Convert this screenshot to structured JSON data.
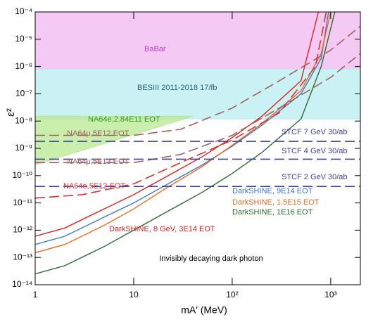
{
  "chart_data": {
    "type": "line",
    "x_label": "mA′ (MeV)",
    "y_label": "ε²",
    "xlog": true,
    "ylog": true,
    "xlim": [
      1,
      2000
    ],
    "ylim": [
      1e-14,
      0.0001
    ],
    "xticks": [
      1,
      10,
      {
        "value": 100,
        "label": "10²"
      },
      {
        "value": 1000,
        "label": "10³"
      }
    ],
    "yticks": [
      {
        "value": 1e-14,
        "label": "10⁻¹⁴"
      },
      {
        "value": 1e-13,
        "label": "10⁻¹³"
      },
      {
        "value": 1e-12,
        "label": "10⁻¹²"
      },
      {
        "value": 1e-11,
        "label": "10⁻¹¹"
      },
      {
        "value": 1e-10,
        "label": "10⁻¹⁰"
      },
      {
        "value": 1e-09,
        "label": "10⁻⁹"
      },
      {
        "value": 1e-08,
        "label": "10⁻⁸"
      },
      {
        "value": 1e-07,
        "label": "10⁻⁷"
      },
      {
        "value": 1e-06,
        "label": "10⁻⁶"
      },
      {
        "value": 1e-05,
        "label": "10⁻⁵"
      },
      {
        "value": 0.0001,
        "label": "10⁻⁴"
      }
    ],
    "regions": [
      {
        "name": "BaBar",
        "color": "#f0b8f0",
        "label_color": "#c040c0",
        "x": [
          1,
          2000,
          2000,
          1
        ],
        "values": [
          0.0001,
          0.0001,
          8e-07,
          8e-07
        ]
      },
      {
        "name": "BESIII 2011-2018 17/fb",
        "color": "#b8eef0",
        "label_color": "#2a6070",
        "x": [
          1,
          2000,
          2000,
          1
        ],
        "values": [
          8e-07,
          8e-07,
          1.2e-08,
          1.2e-08
        ]
      },
      {
        "name": "NA64e,2.84E11 EOT",
        "color": "#b8e890",
        "label_color": "#3a9a20",
        "x": [
          1,
          40,
          1
        ],
        "values": [
          1.5e-08,
          1.5e-08,
          2.5e-10
        ]
      }
    ],
    "series": [
      {
        "name": "DarkSHINE, 9E14 EOT",
        "color": "#3a78c8",
        "dash": false,
        "x": [
          1,
          2,
          5,
          10,
          20,
          50,
          100,
          200,
          500,
          800,
          950
        ],
        "values": [
          3e-13,
          6e-13,
          3e-12,
          1e-11,
          4e-11,
          2.5e-10,
          1.2e-09,
          7e-09,
          1e-07,
          2e-06,
          0.0001
        ]
      },
      {
        "name": "DarkSHINE, 1.5E15 EOT",
        "color": "#f06a20",
        "dash": false,
        "x": [
          1,
          2,
          5,
          10,
          20,
          50,
          100,
          200,
          500,
          800,
          1000
        ],
        "values": [
          1.5e-13,
          3e-13,
          1.5e-12,
          6e-12,
          3e-11,
          2.2e-10,
          1.3e-09,
          8e-09,
          1.3e-07,
          3e-06,
          0.0001
        ]
      },
      {
        "name": "DarkSHINE, 1E16 EOT",
        "color": "#2a6a30",
        "dash": false,
        "x": [
          1,
          2,
          5,
          10,
          20,
          50,
          100,
          200,
          500,
          800,
          1100
        ],
        "values": [
          2.5e-14,
          5e-14,
          2.5e-13,
          1e-12,
          4e-12,
          2.5e-11,
          1.2e-10,
          7e-10,
          1.2e-08,
          1e-06,
          0.0001
        ]
      },
      {
        "name": "DarkSHINE, 8 GeV, 3E14 EOT",
        "color": "#e02020",
        "dash": false,
        "x": [
          1,
          2,
          5,
          10,
          20,
          50,
          100,
          200,
          500,
          750
        ],
        "values": [
          6e-13,
          1.2e-12,
          6e-12,
          2e-11,
          8e-11,
          5e-10,
          2.5e-09,
          1.5e-08,
          3e-07,
          0.0001
        ]
      },
      {
        "name": "NA64μ,5E12 EOT",
        "color": "#a06060",
        "dash": true,
        "x": [
          1,
          10,
          30,
          100,
          300,
          1000,
          2000
        ],
        "values": [
          3e-09,
          3e-09,
          5e-09,
          3e-08,
          3e-07,
          4e-06,
          3e-05
        ]
      },
      {
        "name": "NA64μ,5E13 EOT",
        "color": "#a06060",
        "dash": true,
        "x": [
          1,
          10,
          30,
          100,
          300,
          1000,
          2000
        ],
        "values": [
          3e-10,
          3e-10,
          6e-10,
          3e-09,
          3e-08,
          4e-07,
          3e-06
        ]
      },
      {
        "name": "NA64e,5E12 EOT",
        "color": "#e03030",
        "dash": true,
        "x": [
          1,
          3,
          10,
          30,
          100,
          300,
          700,
          900
        ],
        "values": [
          1.5e-11,
          2e-11,
          5e-11,
          3e-10,
          2e-09,
          2e-08,
          1e-06,
          0.0001
        ]
      },
      {
        "name": "STCF 7 GeV 30/ab",
        "color": "#4040a0",
        "dash": true,
        "x": [
          1,
          2000
        ],
        "values": [
          1.8e-09,
          1.8e-09
        ]
      },
      {
        "name": "STCF 4 GeV 30/ab",
        "color": "#4040a0",
        "dash": true,
        "x": [
          1,
          2000
        ],
        "values": [
          4e-10,
          4e-10
        ]
      },
      {
        "name": "STCF 2 GeV 30/ab",
        "color": "#4040a0",
        "dash": true,
        "x": [
          1,
          2000
        ],
        "values": [
          4e-11,
          4e-11
        ]
      }
    ],
    "annotation": "Invisibly decaying dark photon"
  }
}
